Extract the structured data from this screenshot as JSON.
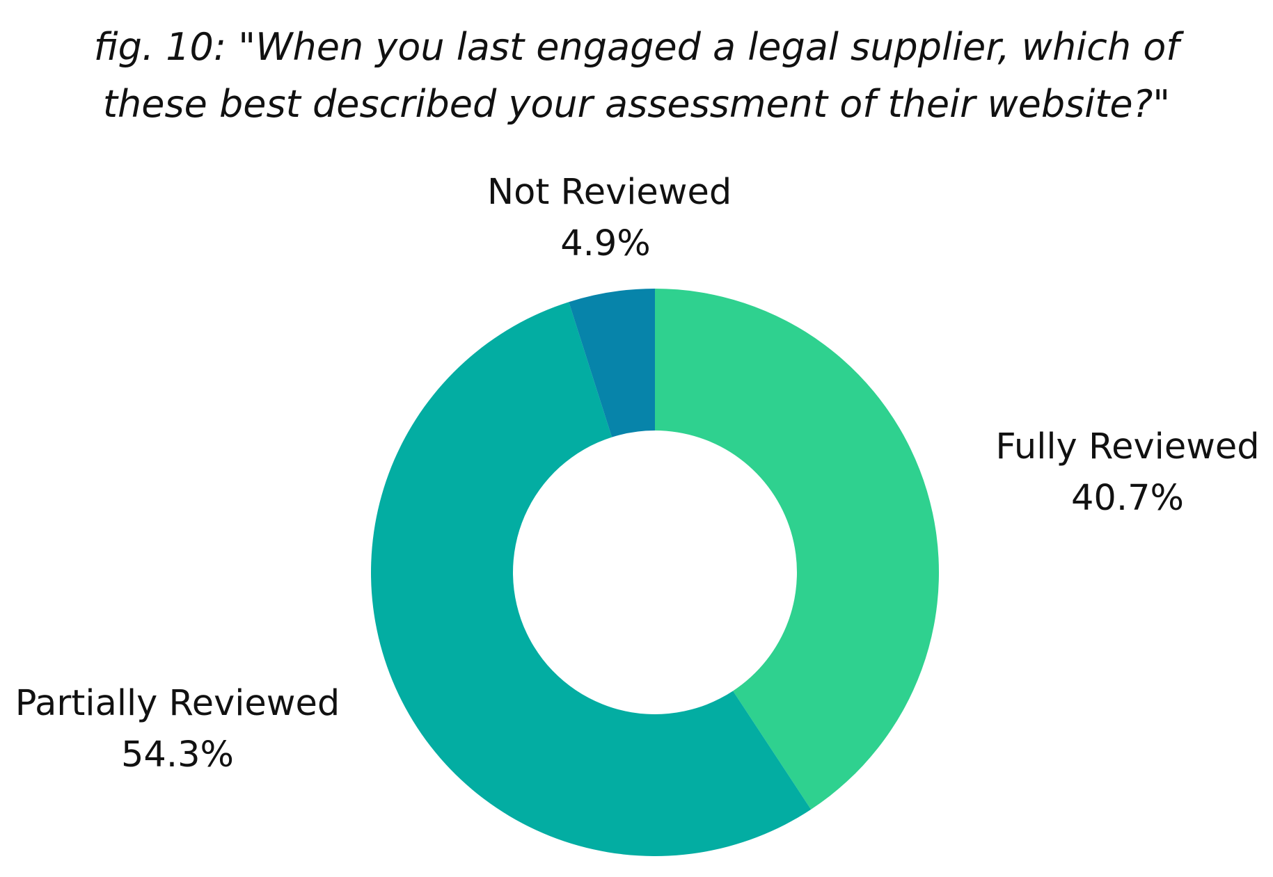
{
  "chart_data": {
    "type": "pie",
    "variant": "donut",
    "title_lines": [
      "fig. 10:  \"When you last engaged a legal supplier, which of",
      "these best described your assessment of their website?\""
    ],
    "slices": [
      {
        "label": "Fully Reviewed",
        "value": 40.7,
        "display": "40.7%",
        "color": "#2fd18f"
      },
      {
        "label": "Partially Reviewed",
        "value": 54.3,
        "display": "54.3%",
        "color": "#03ada2"
      },
      {
        "label": "Not Reviewed",
        "value": 4.9,
        "display": "4.9%",
        "color": "#0784aa"
      }
    ],
    "start_angle": "12 o'clock",
    "direction": "clockwise",
    "legend": "none"
  }
}
